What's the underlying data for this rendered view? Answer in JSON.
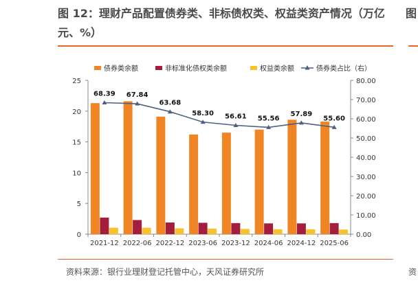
{
  "figure": {
    "title": "图 12：理财产品配置债券类、非标债权类、权益类资产情况（万亿元、%）",
    "source": "资料来源：银行业理财登记托管中心，天风证券研究所",
    "clipped_next_title": "图",
    "clipped_next_source": "资"
  },
  "chart_data": {
    "type": "bar",
    "categories": [
      "2021-12",
      "2022-06",
      "2022-12",
      "2023-06",
      "2023-12",
      "2024-06",
      "2024-12",
      "2025-06"
    ],
    "series": [
      {
        "name": "债券类余额",
        "type": "bar",
        "axis": "left",
        "color": "#f08526",
        "values": [
          21.3,
          21.6,
          19.1,
          16.2,
          16.5,
          17.0,
          18.6,
          18.3
        ]
      },
      {
        "name": "非标准化债权类余额",
        "type": "bar",
        "axis": "left",
        "color": "#a51d3c",
        "values": [
          2.7,
          2.3,
          1.9,
          1.85,
          1.8,
          1.75,
          1.75,
          1.8
        ]
      },
      {
        "name": "权益类余额",
        "type": "bar",
        "axis": "left",
        "color": "#f7c32d",
        "values": [
          1.05,
          1.05,
          0.95,
          0.9,
          0.85,
          0.8,
          0.8,
          0.75
        ]
      },
      {
        "name": "债券类占比（右）",
        "type": "line",
        "axis": "right",
        "color": "#4d5f83",
        "values": [
          68.39,
          67.84,
          63.68,
          58.3,
          56.61,
          55.56,
          57.89,
          55.6
        ]
      }
    ],
    "data_labels": [
      "68.39",
      "67.84",
      "63.68",
      "58.30",
      "56.61",
      "55.56",
      "57.89",
      "55.60"
    ],
    "y_left": {
      "min": 0,
      "max": 25,
      "ticks": [
        "0",
        "5",
        "10",
        "15",
        "20",
        "25"
      ]
    },
    "y_right": {
      "min": 0,
      "max": 80,
      "ticks": [
        "0.00",
        "10.00",
        "20.00",
        "30.00",
        "40.00",
        "50.00",
        "60.00",
        "70.00",
        "80.00"
      ]
    },
    "legend_position": "top",
    "grid": false
  }
}
